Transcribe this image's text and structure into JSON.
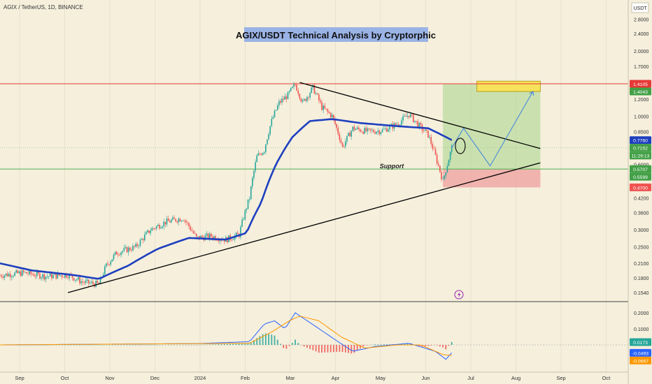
{
  "header": {
    "symbol_line": "AGIX / TetherUS, 1D, BINANCE",
    "currency": "USDT"
  },
  "colors": {
    "background": "#f5efdc",
    "up_candle": "#26a69a",
    "down_candle": "#ef5350",
    "ma_line": "#1e3fbf",
    "trendline": "#000000",
    "support_line": "#4caf50",
    "resistance_line": "#e53935",
    "target_zone_fill": "#a5d68a",
    "stop_zone_fill": "#ef9a9a",
    "target_box": "#f6e35b",
    "projection": "#3d7fe0",
    "title_bg": "#9ab3e6",
    "macd_line": "#2962ff",
    "signal_line": "#ff9800"
  },
  "chart_data": {
    "type": "candlestick",
    "title": "AGIX/USDT Technical Analysis by Cryptorphic",
    "annotation_support": "Support",
    "y_scale": "log",
    "y_ticks": [
      "2.8000",
      "2.4000",
      "2.0000",
      "1.7000",
      "1.2000",
      "1.0000",
      "0.8500",
      "0.6000",
      "0.4200",
      "0.3600",
      "0.3000",
      "0.2500",
      "0.2100",
      "0.1800",
      "0.1540"
    ],
    "x_ticks": [
      "Sep",
      "Oct",
      "Nov",
      "Dec",
      "2024",
      "Feb",
      "Mar",
      "Apr",
      "May",
      "Jun",
      "Jul",
      "Aug",
      "Sep",
      "Oct"
    ],
    "price_badges": [
      {
        "label": "1.4105",
        "price": 1.4105,
        "color": "#e53935"
      },
      {
        "label": "1.4043",
        "price": 1.4043,
        "color": "#43a047"
      },
      {
        "label": "0.7760",
        "price": 0.776,
        "color": "#1e3fbf"
      },
      {
        "label": "0.7152",
        "price": 0.7152,
        "color": "#43a047"
      },
      {
        "label": "11:29:13",
        "price": 0.672,
        "color": "#43a047"
      },
      {
        "label": "0.5707",
        "price": 0.5707,
        "color": "#43a047"
      },
      {
        "label": "0.5599",
        "price": 0.5599,
        "color": "#43a047"
      },
      {
        "label": "0.4700",
        "price": 0.47,
        "color": "#ef5350"
      }
    ],
    "price_series": [
      {
        "date": "2023-08-25",
        "price": 0.185
      },
      {
        "date": "2023-09-10",
        "price": 0.19
      },
      {
        "date": "2023-09-25",
        "price": 0.183
      },
      {
        "date": "2023-10-10",
        "price": 0.186
      },
      {
        "date": "2023-10-20",
        "price": 0.172
      },
      {
        "date": "2023-10-31",
        "price": 0.168
      },
      {
        "date": "2023-11-05",
        "price": 0.205
      },
      {
        "date": "2023-11-12",
        "price": 0.235
      },
      {
        "date": "2023-11-25",
        "price": 0.25
      },
      {
        "date": "2023-12-05",
        "price": 0.3
      },
      {
        "date": "2023-12-15",
        "price": 0.325
      },
      {
        "date": "2023-12-27",
        "price": 0.34
      },
      {
        "date": "2024-01-05",
        "price": 0.275
      },
      {
        "date": "2024-01-15",
        "price": 0.28
      },
      {
        "date": "2024-01-25",
        "price": 0.27
      },
      {
        "date": "2024-02-03",
        "price": 0.285
      },
      {
        "date": "2024-02-10",
        "price": 0.42
      },
      {
        "date": "2024-02-15",
        "price": 0.65
      },
      {
        "date": "2024-02-20",
        "price": 0.7
      },
      {
        "date": "2024-02-25",
        "price": 0.95
      },
      {
        "date": "2024-03-01",
        "price": 1.15
      },
      {
        "date": "2024-03-07",
        "price": 1.25
      },
      {
        "date": "2024-03-12",
        "price": 1.4
      },
      {
        "date": "2024-03-17",
        "price": 1.15
      },
      {
        "date": "2024-03-24",
        "price": 1.35
      },
      {
        "date": "2024-03-30",
        "price": 1.1
      },
      {
        "date": "2024-04-06",
        "price": 1.0
      },
      {
        "date": "2024-04-13",
        "price": 0.72
      },
      {
        "date": "2024-04-20",
        "price": 0.88
      },
      {
        "date": "2024-04-30",
        "price": 0.85
      },
      {
        "date": "2024-05-10",
        "price": 0.86
      },
      {
        "date": "2024-05-20",
        "price": 0.92
      },
      {
        "date": "2024-05-28",
        "price": 1.02
      },
      {
        "date": "2024-06-04",
        "price": 0.9
      },
      {
        "date": "2024-06-10",
        "price": 0.82
      },
      {
        "date": "2024-06-16",
        "price": 0.62
      },
      {
        "date": "2024-06-20",
        "price": 0.5
      },
      {
        "date": "2024-06-23",
        "price": 0.6
      },
      {
        "date": "2024-06-26",
        "price": 0.715
      }
    ],
    "ma_series": [
      {
        "date": "2023-08-25",
        "price": 0.21
      },
      {
        "date": "2023-09-15",
        "price": 0.195
      },
      {
        "date": "2023-10-15",
        "price": 0.185
      },
      {
        "date": "2023-10-31",
        "price": 0.178
      },
      {
        "date": "2023-11-20",
        "price": 0.205
      },
      {
        "date": "2023-12-10",
        "price": 0.245
      },
      {
        "date": "2023-12-31",
        "price": 0.275
      },
      {
        "date": "2024-01-25",
        "price": 0.27
      },
      {
        "date": "2024-02-08",
        "price": 0.29
      },
      {
        "date": "2024-02-18",
        "price": 0.4
      },
      {
        "date": "2024-02-28",
        "price": 0.6
      },
      {
        "date": "2024-03-10",
        "price": 0.8
      },
      {
        "date": "2024-03-22",
        "price": 0.95
      },
      {
        "date": "2024-04-06",
        "price": 0.97
      },
      {
        "date": "2024-04-25",
        "price": 0.93
      },
      {
        "date": "2024-05-20",
        "price": 0.9
      },
      {
        "date": "2024-06-10",
        "price": 0.88
      },
      {
        "date": "2024-06-26",
        "price": 0.776
      }
    ],
    "lines": {
      "resistance_trendline": [
        {
          "date": "2024-03-15",
          "price": 1.43
        },
        {
          "date": "2024-08-25",
          "price": 0.71
        }
      ],
      "support_trendline": [
        {
          "date": "2023-10-10",
          "price": 0.154
        },
        {
          "date": "2024-08-25",
          "price": 0.61
        }
      ],
      "support_level": 0.5707,
      "resistance_level": 1.4105
    },
    "zones": {
      "target": {
        "from_date": "2024-06-20",
        "to_date": "2024-08-25",
        "low": 0.5707,
        "high": 1.4043
      },
      "stop": {
        "from_date": "2024-06-20",
        "to_date": "2024-08-25",
        "low": 0.47,
        "high": 0.5707
      },
      "target_box": {
        "from_date": "2024-07-13",
        "to_date": "2024-08-25",
        "low": 1.3,
        "high": 1.45
      }
    },
    "projection_path": [
      {
        "date": "2024-06-26",
        "price": 0.715
      },
      {
        "date": "2024-07-04",
        "price": 0.88
      },
      {
        "date": "2024-07-22",
        "price": 0.59
      },
      {
        "date": "2024-08-20",
        "price": 1.3
      }
    ],
    "indicator": {
      "y_ticks": [
        "0.2000",
        "0.1000"
      ],
      "badges": [
        {
          "label": "0.0173",
          "value": 0.0173,
          "color": "#26a69a"
        },
        {
          "label": "-0.0493",
          "value": -0.0493,
          "color": "#2962ff"
        },
        {
          "label": "-0.0667",
          "value": -0.0667,
          "color": "#ff9800"
        }
      ],
      "macd": [
        {
          "date": "2023-08-25",
          "value": 0.0
        },
        {
          "date": "2023-11-15",
          "value": 0.005
        },
        {
          "date": "2024-01-05",
          "value": 0.008
        },
        {
          "date": "2024-02-10",
          "value": 0.02
        },
        {
          "date": "2024-02-20",
          "value": 0.13
        },
        {
          "date": "2024-02-27",
          "value": 0.15
        },
        {
          "date": "2024-03-05",
          "value": 0.1
        },
        {
          "date": "2024-03-12",
          "value": 0.2
        },
        {
          "date": "2024-03-25",
          "value": 0.12
        },
        {
          "date": "2024-04-10",
          "value": 0.02
        },
        {
          "date": "2024-04-20",
          "value": -0.04
        },
        {
          "date": "2024-05-05",
          "value": -0.01
        },
        {
          "date": "2024-05-28",
          "value": 0.01
        },
        {
          "date": "2024-06-15",
          "value": -0.04
        },
        {
          "date": "2024-06-22",
          "value": -0.09
        },
        {
          "date": "2024-06-26",
          "value": -0.0493
        }
      ],
      "signal": [
        {
          "date": "2023-08-25",
          "value": 0.0
        },
        {
          "date": "2024-02-10",
          "value": 0.01
        },
        {
          "date": "2024-02-25",
          "value": 0.08
        },
        {
          "date": "2024-03-08",
          "value": 0.15
        },
        {
          "date": "2024-03-15",
          "value": 0.18
        },
        {
          "date": "2024-03-28",
          "value": 0.15
        },
        {
          "date": "2024-04-12",
          "value": 0.05
        },
        {
          "date": "2024-04-28",
          "value": -0.02
        },
        {
          "date": "2024-05-20",
          "value": 0.0
        },
        {
          "date": "2024-06-05",
          "value": 0.0
        },
        {
          "date": "2024-06-20",
          "value": -0.06
        },
        {
          "date": "2024-06-26",
          "value": -0.0667
        }
      ]
    }
  }
}
